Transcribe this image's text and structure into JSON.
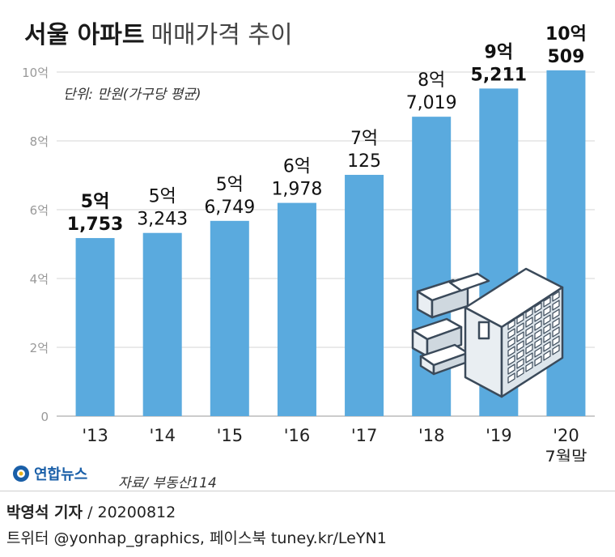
{
  "header": {
    "title_bold": "서울 아파트",
    "title_light": "매매가격 추이"
  },
  "chart_data": {
    "type": "bar",
    "unit_note": "단위: 만원(가구당 평균)",
    "categories": [
      "'13",
      "'14",
      "'15",
      "'16",
      "'17",
      "'18",
      "'19",
      "'20"
    ],
    "category_sublabels": [
      "",
      "",
      "",
      "",
      "",
      "",
      "",
      "7월말"
    ],
    "values": [
      51753,
      53243,
      56749,
      61978,
      70125,
      87019,
      95211,
      100509
    ],
    "label_line1": [
      "5억",
      "5억",
      "5억",
      "6억",
      "7억",
      "8억",
      "9억",
      "10억"
    ],
    "label_line2": [
      "1,753",
      "3,243",
      "6,749",
      "1,978",
      "125",
      "7,019",
      "5,211",
      "509"
    ],
    "label_bold": [
      true,
      false,
      false,
      false,
      false,
      false,
      true,
      true
    ],
    "yticks": [
      "0",
      "2억",
      "4억",
      "6억",
      "8억",
      "10억"
    ],
    "ylim": [
      0,
      100000
    ],
    "bar_color": "#5aaade",
    "grid": true
  },
  "footer": {
    "logo_text": "연합뉴스",
    "source": "자료/ 부동산114",
    "reporter": "박영석 기자",
    "date": "/ 20200812",
    "social": "트위터 @yonhap_graphics, 페이스북 tuney.kr/LeYN1"
  }
}
